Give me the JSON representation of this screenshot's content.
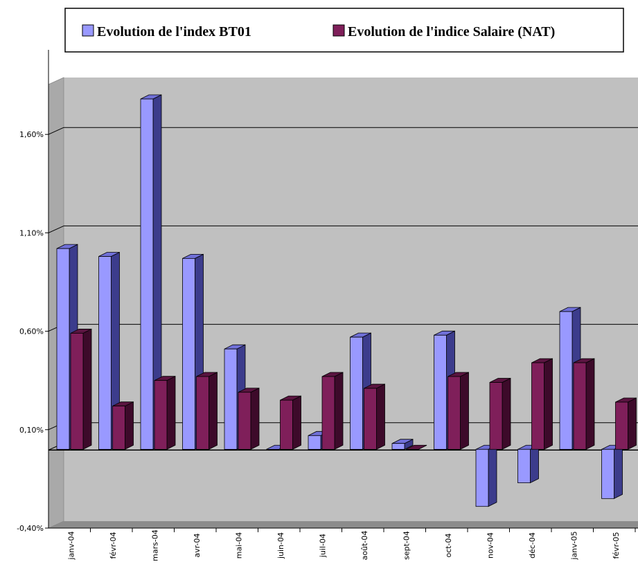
{
  "chart_data": {
    "type": "bar",
    "bar_style": "3d-clustered",
    "title": "",
    "xlabel": "",
    "ylabel": "",
    "ylim": [
      -0.004,
      0.021
    ],
    "yticks": [
      {
        "value": -0.004,
        "label": "-0,40%"
      },
      {
        "value": 0.001,
        "label": "0,10%"
      },
      {
        "value": 0.006,
        "label": "0,60%"
      },
      {
        "value": 0.011,
        "label": "1,10%"
      },
      {
        "value": 0.016,
        "label": "1,60%"
      }
    ],
    "grid": true,
    "legend_position": "top",
    "categories": [
      "janv-04",
      "févr-04",
      "mars-04",
      "avr-04",
      "mai-04",
      "juin-04",
      "juil-04",
      "août-04",
      "sept-04",
      "oct-04",
      "nov-04",
      "déc-04",
      "janv-05",
      "févr-05"
    ],
    "series": [
      {
        "name": "Evolution de l'index BT01",
        "color": "#9999ff",
        "side_color": "#3c3c8c",
        "top_color": "#7070d8",
        "values": [
          0.0102,
          0.0098,
          0.0178,
          0.0097,
          0.0051,
          0.0,
          0.0007,
          0.0057,
          0.0003,
          0.0058,
          -0.0029,
          -0.0017,
          0.007,
          -0.0025
        ]
      },
      {
        "name": "Evolution de l'indice Salaire (NAT)",
        "color": "#7f1f5a",
        "side_color": "#3d0a2a",
        "top_color": "#5a1440",
        "values": [
          0.0059,
          0.0022,
          0.0035,
          0.0037,
          0.0029,
          0.0025,
          0.0037,
          0.0031,
          0.0,
          0.0037,
          0.0034,
          0.0044,
          0.0044,
          0.0024
        ]
      }
    ]
  }
}
